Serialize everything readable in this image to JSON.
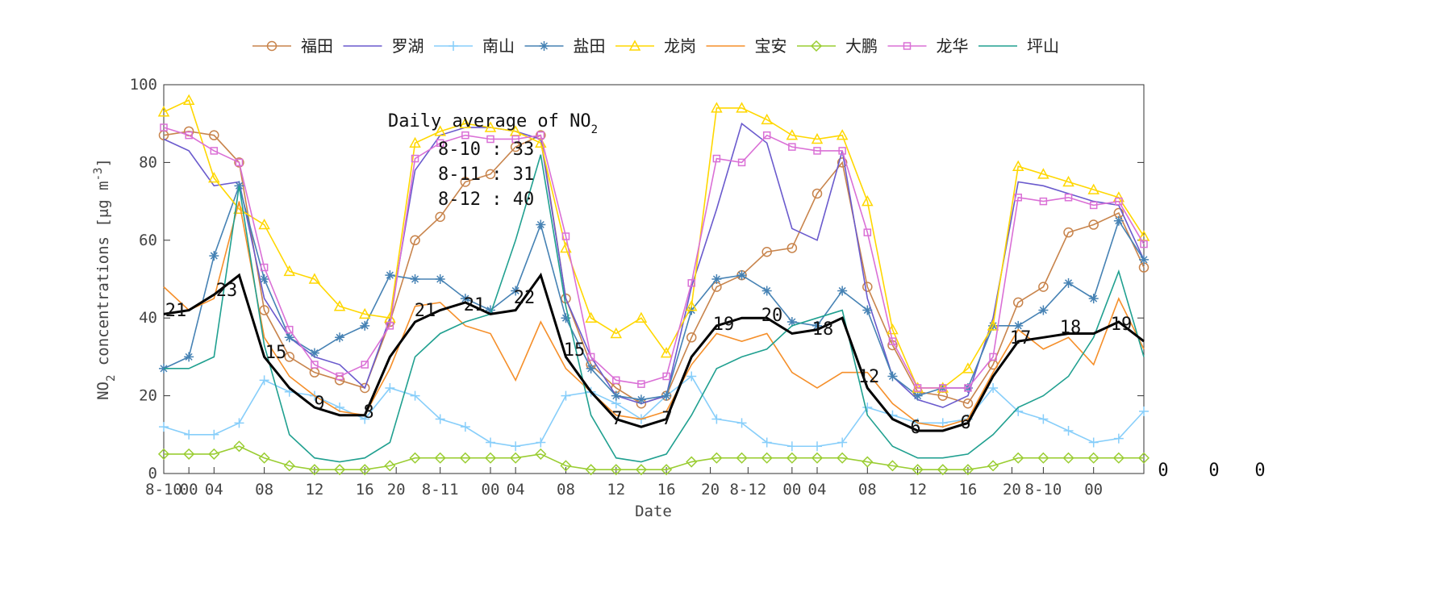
{
  "chart_data": {
    "type": "line",
    "xlabel": "Date",
    "ylabel": [
      {
        "text": "NO"
      },
      {
        "text": "2",
        "shift": "sub"
      },
      {
        "text": " concentrations [μg m"
      },
      {
        "text": "-3",
        "shift": "super"
      },
      {
        "text": "]"
      }
    ],
    "annotation_title": [
      {
        "text": "Daily average of NO"
      },
      {
        "text": "2",
        "shift": "sub"
      }
    ],
    "annotations": [
      "8-10 : 33",
      "8-11 : 31",
      "8-12 : 40"
    ],
    "line_labels": [
      "21",
      "23",
      "15",
      "9",
      "8",
      "21",
      "21",
      "22",
      "15",
      "7",
      "7",
      "19",
      "20",
      "18",
      "12",
      "6",
      "6",
      "17",
      "18",
      "19"
    ],
    "right_labels": [
      "0",
      "0",
      "0"
    ],
    "xlim": [
      0,
      78
    ],
    "ylim": [
      0,
      100
    ],
    "yticks": [
      0,
      20,
      40,
      60,
      80,
      100
    ],
    "xticks": [
      {
        "value": 0,
        "label": "8-10"
      },
      {
        "value": 2,
        "label": "00"
      },
      {
        "value": 4,
        "label": "04"
      },
      {
        "value": 8,
        "label": "08"
      },
      {
        "value": 12,
        "label": "12"
      },
      {
        "value": 16,
        "label": "16"
      },
      {
        "value": 18.5,
        "label": "20"
      },
      {
        "value": 22,
        "label": "8-11"
      },
      {
        "value": 26,
        "label": "00"
      },
      {
        "value": 28,
        "label": "04"
      },
      {
        "value": 32,
        "label": "08"
      },
      {
        "value": 36,
        "label": "12"
      },
      {
        "value": 40,
        "label": "16"
      },
      {
        "value": 43.5,
        "label": "20"
      },
      {
        "value": 46.5,
        "label": "8-12"
      },
      {
        "value": 50,
        "label": "00"
      },
      {
        "value": 52,
        "label": "04"
      },
      {
        "value": 56,
        "label": "08"
      },
      {
        "value": 60,
        "label": "12"
      },
      {
        "value": 64,
        "label": "16"
      },
      {
        "value": 67.5,
        "label": "20"
      },
      {
        "value": 70,
        "label": "8-10"
      },
      {
        "value": 74,
        "label": "00"
      }
    ],
    "x": [
      0,
      2,
      4,
      6,
      8,
      10,
      12,
      14,
      16,
      18,
      20,
      22,
      24,
      26,
      28,
      30,
      32,
      34,
      36,
      38,
      40,
      42,
      44,
      46,
      48,
      50,
      52,
      54,
      56,
      58,
      60,
      62,
      64,
      66,
      68,
      70,
      72,
      74,
      76,
      78
    ],
    "series": [
      {
        "name": "福田",
        "color": "#c8844c",
        "marker": "circle",
        "values": [
          87,
          88,
          87,
          80,
          42,
          30,
          26,
          24,
          22,
          39,
          60,
          66,
          75,
          77,
          84,
          87,
          45,
          28,
          22,
          18,
          20,
          35,
          48,
          51,
          57,
          58,
          72,
          80,
          48,
          33,
          21,
          20,
          18,
          28,
          44,
          48,
          62,
          64,
          67,
          53
        ]
      },
      {
        "name": "罗湖",
        "color": "#6a5acd",
        "values": [
          86,
          83,
          74,
          75,
          45,
          35,
          30,
          28,
          22,
          40,
          78,
          87,
          89,
          89,
          88,
          86,
          45,
          30,
          20,
          18,
          20,
          48,
          68,
          90,
          85,
          63,
          60,
          83,
          45,
          25,
          19,
          17,
          20,
          40,
          75,
          74,
          72,
          70,
          69,
          55
        ]
      },
      {
        "name": "南山",
        "color": "#87cefa",
        "marker": "plus",
        "values": [
          12,
          10,
          10,
          13,
          24,
          21,
          20,
          17,
          14,
          22,
          20,
          14,
          12,
          8,
          7,
          8,
          20,
          21,
          18,
          14,
          20,
          25,
          14,
          13,
          8,
          7,
          7,
          8,
          17,
          15,
          13,
          13,
          14,
          22,
          16,
          14,
          11,
          8,
          9,
          16
        ]
      },
      {
        "name": "盐田",
        "color": "#4682b4",
        "marker": "star",
        "values": [
          27,
          30,
          56,
          74,
          50,
          35,
          31,
          35,
          38,
          51,
          50,
          50,
          45,
          42,
          47,
          64,
          40,
          27,
          20,
          19,
          20,
          42,
          50,
          51,
          47,
          39,
          38,
          47,
          42,
          25,
          20,
          22,
          22,
          38,
          38,
          42,
          49,
          45,
          65,
          55
        ]
      },
      {
        "name": "龙岗",
        "color": "#ffd700",
        "marker": "triangle",
        "values": [
          93,
          96,
          76,
          68,
          64,
          52,
          50,
          43,
          41,
          40,
          85,
          88,
          90,
          89,
          88,
          85,
          58,
          40,
          36,
          40,
          31,
          43,
          94,
          94,
          91,
          87,
          86,
          87,
          70,
          37,
          22,
          22,
          27,
          38,
          79,
          77,
          75,
          73,
          71,
          61
        ]
      },
      {
        "name": "宝安",
        "color": "#f58f2a",
        "values": [
          48,
          42,
          45,
          70,
          35,
          25,
          20,
          16,
          15,
          27,
          43,
          44,
          38,
          36,
          24,
          39,
          27,
          21,
          15,
          14,
          16,
          28,
          36,
          34,
          36,
          26,
          22,
          26,
          26,
          18,
          13,
          12,
          14,
          26,
          37,
          32,
          35,
          28,
          45,
          32
        ]
      },
      {
        "name": "大鹏",
        "color": "#9acd32",
        "marker": "diamond",
        "values": [
          5,
          5,
          5,
          7,
          4,
          2,
          1,
          1,
          1,
          2,
          4,
          4,
          4,
          4,
          4,
          5,
          2,
          1,
          1,
          1,
          1,
          3,
          4,
          4,
          4,
          4,
          4,
          4,
          3,
          2,
          1,
          1,
          1,
          2,
          4,
          4,
          4,
          4,
          4,
          4
        ]
      },
      {
        "name": "龙华",
        "color": "#da70d6",
        "marker": "square",
        "values": [
          89,
          87,
          83,
          80,
          53,
          37,
          28,
          25,
          28,
          38,
          81,
          85,
          87,
          86,
          86,
          87,
          61,
          30,
          24,
          23,
          25,
          49,
          81,
          80,
          87,
          84,
          83,
          83,
          62,
          34,
          22,
          22,
          22,
          30,
          71,
          70,
          71,
          69,
          70,
          59
        ]
      },
      {
        "name": "坪山",
        "color": "#20a090",
        "values": [
          27,
          27,
          30,
          74,
          33,
          10,
          4,
          3,
          4,
          8,
          30,
          36,
          39,
          41,
          60,
          82,
          43,
          15,
          4,
          3,
          5,
          15,
          27,
          30,
          32,
          38,
          40,
          42,
          15,
          7,
          4,
          4,
          5,
          10,
          17,
          20,
          25,
          35,
          52,
          30
        ]
      },
      {
        "color": "#000000",
        "width": 3,
        "values": [
          41,
          42,
          46,
          51,
          30,
          22,
          17,
          15,
          15,
          30,
          39,
          42,
          44,
          41,
          42,
          51,
          30,
          21,
          14,
          12,
          14,
          30,
          38,
          40,
          40,
          36,
          37,
          40,
          22,
          14,
          11,
          11,
          13,
          25,
          34,
          35,
          36,
          36,
          39,
          34
        ]
      }
    ]
  }
}
